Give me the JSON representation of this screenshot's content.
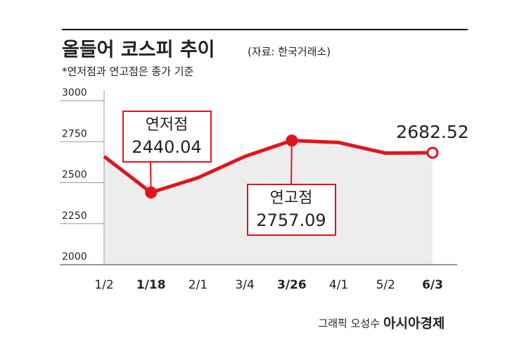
{
  "chart_data": {
    "type": "line",
    "title": "올들어 코스피 추이",
    "subtitle": "(자료: 한국거래소)",
    "note": "*연저점과 연고점은 종가 기준",
    "annotations": [
      "연저점",
      "연고점"
    ],
    "credit": "그래픽 오성수",
    "source_logo": "아시아경제",
    "categories": [
      "1/2",
      "1/18",
      "2/1",
      "3/4",
      "3/26",
      "4/1",
      "5/2",
      "6/3"
    ],
    "values": [
      2660,
      2440.04,
      2530,
      2660,
      2757.09,
      2745,
      2680,
      2682.52
    ],
    "color": "#e0141e",
    "ylim": [
      2000,
      3000
    ],
    "yticks": [
      2000,
      2250,
      2500,
      2750,
      3000
    ],
    "grid": true
  }
}
